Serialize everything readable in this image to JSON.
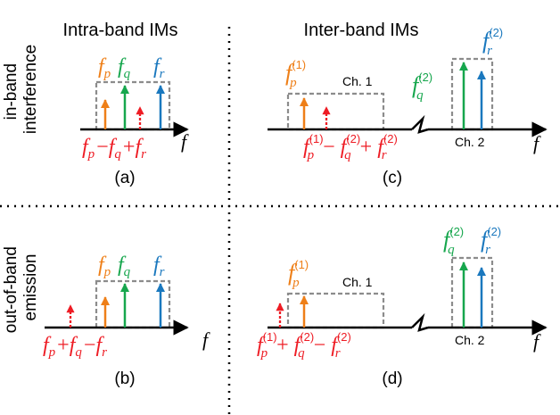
{
  "colors": {
    "p": "#ee7f18",
    "q": "#16a64d",
    "r": "#1a78be",
    "im": "#ee1c24",
    "box": "#8c8c8c"
  },
  "headings": {
    "intra": "Intra-band IMs",
    "inter": "Inter-band IMs"
  },
  "row_labels": {
    "in_line1": "in-band",
    "in_line2": "interference",
    "out_line1": "out-of-band",
    "out_line2": "emission"
  },
  "axis_label": "f",
  "panel_labels": {
    "a": "(a)",
    "b": "(b)",
    "c": "(c)",
    "d": "(d)"
  },
  "channels": {
    "ch1": "Ch. 1",
    "ch2": "Ch. 2"
  },
  "symbols": {
    "f": "f",
    "p": "p",
    "q": "q",
    "r": "r",
    "sup1": "(1)",
    "sup2": "(2)",
    "plus": "+",
    "minus": "−"
  }
}
